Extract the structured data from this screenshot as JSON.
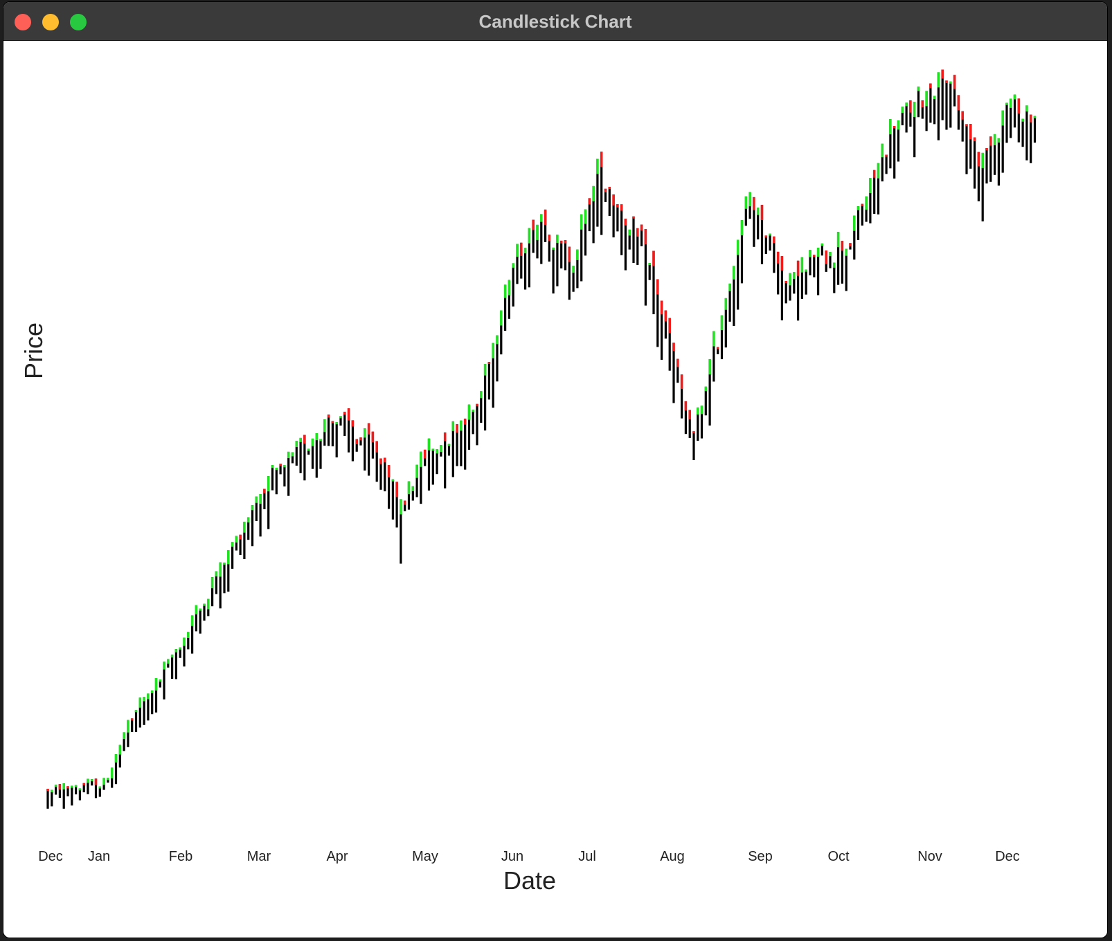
{
  "window": {
    "title": "Candlestick Chart"
  },
  "colors": {
    "up": "#22e022",
    "down": "#f01c1c",
    "wick": "#000000",
    "titlebar": "#3a3a3a"
  },
  "icons": [
    "close-icon",
    "minimize-icon",
    "maximize-icon"
  ],
  "chart_data": {
    "type": "candlestick",
    "title": "",
    "xlabel": "Date",
    "ylabel": "Price",
    "x_ticks": [
      "Dec",
      "Jan",
      "Feb",
      "Mar",
      "Apr",
      "May",
      "Jun",
      "Jul",
      "Aug",
      "Sep",
      "Oct",
      "Nov",
      "Dec"
    ],
    "ylim": [
      0,
      100
    ],
    "y_ticks_shown": false,
    "grid": false,
    "anchors": [
      {
        "day": 0,
        "close": 5
      },
      {
        "day": 20,
        "close": 6
      },
      {
        "day": 28,
        "close": 14
      },
      {
        "day": 45,
        "close": 24
      },
      {
        "day": 60,
        "close": 35
      },
      {
        "day": 75,
        "close": 46
      },
      {
        "day": 100,
        "close": 56
      },
      {
        "day": 118,
        "close": 49
      },
      {
        "day": 122,
        "close": 42
      },
      {
        "day": 130,
        "close": 50
      },
      {
        "day": 150,
        "close": 57
      },
      {
        "day": 160,
        "close": 74
      },
      {
        "day": 172,
        "close": 83
      },
      {
        "day": 182,
        "close": 76
      },
      {
        "day": 192,
        "close": 89
      },
      {
        "day": 210,
        "close": 76
      },
      {
        "day": 225,
        "close": 52
      },
      {
        "day": 245,
        "close": 86
      },
      {
        "day": 258,
        "close": 74
      },
      {
        "day": 268,
        "close": 77
      },
      {
        "day": 280,
        "close": 80
      },
      {
        "day": 295,
        "close": 95
      },
      {
        "day": 312,
        "close": 102
      },
      {
        "day": 325,
        "close": 90
      },
      {
        "day": 335,
        "close": 98
      },
      {
        "day": 345,
        "close": 96
      }
    ],
    "n_days": 345
  }
}
